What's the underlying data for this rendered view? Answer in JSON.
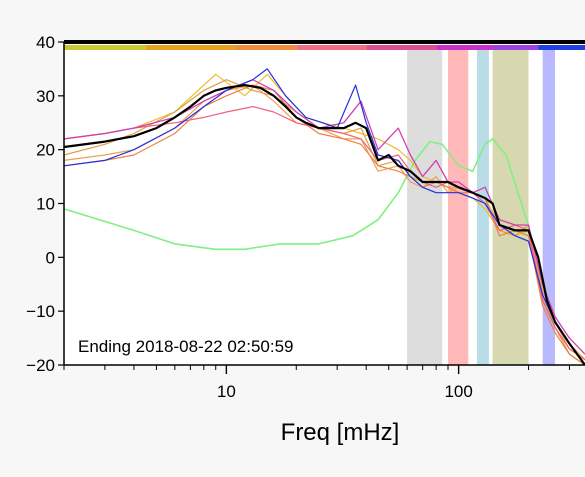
{
  "chart_data": {
    "type": "line",
    "xlabel": "Freq [mHz]",
    "ylabel": "",
    "xscale": "log",
    "xlim": [
      2,
      350
    ],
    "ylim": [
      -20,
      40
    ],
    "grid": false,
    "annotation": "Ending 2018-08-22 02:50:59",
    "x_ticks": [
      {
        "value": 10,
        "label": "10"
      },
      {
        "value": 100,
        "label": "100"
      }
    ],
    "y_ticks": [
      {
        "value": 40,
        "label": "40"
      },
      {
        "value": 30,
        "label": "30"
      },
      {
        "value": 20,
        "label": "20"
      },
      {
        "value": 10,
        "label": "10"
      },
      {
        "value": 0,
        "label": "0"
      },
      {
        "value": -10,
        "label": "−10"
      },
      {
        "value": -20,
        "label": "−20"
      }
    ],
    "top_band": [
      {
        "x0": 2,
        "x1": 4.5,
        "color": "#c8c832"
      },
      {
        "x0": 4.5,
        "x1": 11,
        "color": "#e8a020"
      },
      {
        "x0": 11,
        "x1": 20,
        "color": "#f08c3c"
      },
      {
        "x0": 20,
        "x1": 40,
        "color": "#f06e82"
      },
      {
        "x0": 40,
        "x1": 80,
        "color": "#d85090"
      },
      {
        "x0": 80,
        "x1": 140,
        "color": "#c830c8"
      },
      {
        "x0": 140,
        "x1": 220,
        "color": "#a040e0"
      },
      {
        "x0": 220,
        "x1": 350,
        "color": "#2040e0"
      }
    ],
    "shaded_bands": [
      {
        "x0": 60,
        "x1": 85,
        "color": "#b4b4b4"
      },
      {
        "x0": 90,
        "x1": 110,
        "color": "#ff6464"
      },
      {
        "x0": 120,
        "x1": 135,
        "color": "#64b4c8"
      },
      {
        "x0": 140,
        "x1": 200,
        "color": "#a8a850"
      },
      {
        "x0": 230,
        "x1": 260,
        "color": "#6464ff"
      }
    ],
    "series": [
      {
        "color": "#80f080",
        "width": 1.6,
        "points": [
          [
            2,
            9
          ],
          [
            4,
            5
          ],
          [
            6,
            2.5
          ],
          [
            9,
            1.5
          ],
          [
            12,
            1.5
          ],
          [
            17,
            2.5
          ],
          [
            25,
            2.5
          ],
          [
            35,
            4
          ],
          [
            45,
            7
          ],
          [
            55,
            12
          ],
          [
            65,
            18
          ],
          [
            75,
            21.5
          ],
          [
            85,
            21
          ],
          [
            100,
            17
          ],
          [
            115,
            16
          ],
          [
            130,
            21
          ],
          [
            140,
            22
          ],
          [
            160,
            19
          ],
          [
            180,
            12
          ],
          [
            200,
            6
          ]
        ]
      },
      {
        "color": "#e8c030",
        "width": 1.2,
        "points": [
          [
            2,
            22
          ],
          [
            3,
            23
          ],
          [
            4,
            24
          ],
          [
            6,
            27
          ],
          [
            8,
            32
          ],
          [
            9,
            34
          ],
          [
            12,
            30
          ],
          [
            15,
            34
          ],
          [
            18,
            30
          ],
          [
            22,
            26
          ],
          [
            26,
            25
          ],
          [
            32,
            24
          ],
          [
            38,
            23
          ],
          [
            45,
            22
          ],
          [
            55,
            20
          ],
          [
            62,
            18
          ],
          [
            70,
            15
          ],
          [
            80,
            14
          ],
          [
            90,
            13
          ],
          [
            100,
            12
          ],
          [
            115,
            11
          ],
          [
            130,
            9
          ],
          [
            150,
            5
          ],
          [
            175,
            4
          ],
          [
            200,
            5
          ],
          [
            230,
            -8
          ],
          [
            260,
            -12
          ],
          [
            300,
            -16
          ],
          [
            350,
            -19
          ]
        ]
      },
      {
        "color": "#e0a040",
        "width": 1.2,
        "points": [
          [
            2,
            19
          ],
          [
            3,
            21
          ],
          [
            4,
            23
          ],
          [
            6,
            27
          ],
          [
            8,
            31
          ],
          [
            10,
            33
          ],
          [
            13,
            31
          ],
          [
            16,
            30
          ],
          [
            20,
            27
          ],
          [
            25,
            24
          ],
          [
            32,
            23
          ],
          [
            38,
            24
          ],
          [
            45,
            17
          ],
          [
            55,
            18
          ],
          [
            62,
            15
          ],
          [
            70,
            14
          ],
          [
            80,
            14
          ],
          [
            90,
            13
          ],
          [
            100,
            13
          ],
          [
            115,
            12
          ],
          [
            130,
            10
          ],
          [
            150,
            5
          ],
          [
            175,
            4
          ],
          [
            200,
            6
          ],
          [
            230,
            -7
          ],
          [
            260,
            -13
          ],
          [
            300,
            -18
          ],
          [
            350,
            -20
          ]
        ]
      },
      {
        "color": "#f0a050",
        "width": 1.2,
        "points": [
          [
            2,
            18
          ],
          [
            3,
            19
          ],
          [
            4,
            20
          ],
          [
            6,
            24
          ],
          [
            8,
            29
          ],
          [
            10,
            31
          ],
          [
            13,
            32
          ],
          [
            16,
            29
          ],
          [
            20,
            25
          ],
          [
            25,
            24
          ],
          [
            32,
            22
          ],
          [
            38,
            22
          ],
          [
            45,
            16
          ],
          [
            55,
            17
          ],
          [
            62,
            14
          ],
          [
            70,
            13
          ],
          [
            80,
            15
          ],
          [
            90,
            12
          ],
          [
            100,
            13
          ],
          [
            115,
            12
          ],
          [
            130,
            11
          ],
          [
            150,
            6
          ],
          [
            175,
            5
          ],
          [
            200,
            5
          ],
          [
            230,
            -6
          ],
          [
            260,
            -12
          ],
          [
            300,
            -17
          ],
          [
            350,
            -19
          ]
        ]
      },
      {
        "color": "#f08040",
        "width": 1.2,
        "points": [
          [
            2,
            17
          ],
          [
            3,
            18
          ],
          [
            4,
            19
          ],
          [
            6,
            23
          ],
          [
            8,
            28
          ],
          [
            10,
            30
          ],
          [
            13,
            32
          ],
          [
            16,
            31
          ],
          [
            20,
            26
          ],
          [
            25,
            23
          ],
          [
            32,
            22
          ],
          [
            38,
            21
          ],
          [
            45,
            17
          ],
          [
            55,
            16
          ],
          [
            62,
            15
          ],
          [
            70,
            13
          ],
          [
            80,
            14
          ],
          [
            90,
            13
          ],
          [
            100,
            12
          ],
          [
            115,
            12
          ],
          [
            130,
            11
          ],
          [
            150,
            4
          ],
          [
            175,
            5
          ],
          [
            200,
            4
          ],
          [
            230,
            -9
          ],
          [
            260,
            -14
          ],
          [
            300,
            -18
          ],
          [
            350,
            -20
          ]
        ]
      },
      {
        "color": "#f06080",
        "width": 1.2,
        "points": [
          [
            2,
            22
          ],
          [
            3,
            23
          ],
          [
            4,
            24
          ],
          [
            6,
            25
          ],
          [
            8,
            26
          ],
          [
            10,
            27
          ],
          [
            13,
            28
          ],
          [
            16,
            27
          ],
          [
            20,
            25
          ],
          [
            25,
            24
          ],
          [
            32,
            23
          ],
          [
            38,
            22
          ],
          [
            45,
            18
          ],
          [
            55,
            19
          ],
          [
            62,
            16
          ],
          [
            70,
            14
          ],
          [
            80,
            13
          ],
          [
            90,
            14
          ],
          [
            100,
            13
          ],
          [
            115,
            12
          ],
          [
            130,
            10
          ],
          [
            150,
            5
          ],
          [
            175,
            6
          ],
          [
            200,
            5
          ],
          [
            230,
            -8
          ],
          [
            260,
            -13
          ],
          [
            300,
            -17
          ],
          [
            350,
            -19
          ]
        ]
      },
      {
        "color": "#d040b0",
        "width": 1.3,
        "points": [
          [
            2,
            22
          ],
          [
            3,
            23
          ],
          [
            4,
            24
          ],
          [
            6,
            26
          ],
          [
            8,
            29
          ],
          [
            10,
            31
          ],
          [
            13,
            33
          ],
          [
            16,
            31
          ],
          [
            20,
            27
          ],
          [
            25,
            24
          ],
          [
            32,
            25
          ],
          [
            38,
            29
          ],
          [
            45,
            20
          ],
          [
            55,
            24
          ],
          [
            62,
            19
          ],
          [
            70,
            15
          ],
          [
            80,
            18
          ],
          [
            90,
            14
          ],
          [
            100,
            14
          ],
          [
            115,
            12
          ],
          [
            130,
            13
          ],
          [
            150,
            7
          ],
          [
            175,
            6
          ],
          [
            200,
            6
          ],
          [
            230,
            -5
          ],
          [
            260,
            -11
          ],
          [
            300,
            -15
          ],
          [
            350,
            -18
          ]
        ]
      },
      {
        "color": "#2030e0",
        "width": 1.2,
        "points": [
          [
            2,
            17
          ],
          [
            3,
            18
          ],
          [
            4,
            20
          ],
          [
            6,
            24
          ],
          [
            8,
            28
          ],
          [
            10,
            31
          ],
          [
            13,
            33
          ],
          [
            15,
            35
          ],
          [
            18,
            30
          ],
          [
            22,
            26
          ],
          [
            26,
            25
          ],
          [
            30,
            24
          ],
          [
            36,
            32
          ],
          [
            40,
            25
          ],
          [
            45,
            19
          ],
          [
            55,
            18
          ],
          [
            62,
            15
          ],
          [
            70,
            13
          ],
          [
            80,
            12
          ],
          [
            90,
            12
          ],
          [
            100,
            12
          ],
          [
            115,
            11
          ],
          [
            130,
            10
          ],
          [
            150,
            6
          ],
          [
            175,
            4
          ],
          [
            200,
            3
          ],
          [
            230,
            -7
          ],
          [
            260,
            -12
          ],
          [
            300,
            -16
          ],
          [
            350,
            -20
          ]
        ]
      },
      {
        "color": "#000000",
        "width": 2.2,
        "points": [
          [
            2,
            20.5
          ],
          [
            3,
            21.5
          ],
          [
            4,
            22.5
          ],
          [
            5,
            24
          ],
          [
            6,
            26
          ],
          [
            7,
            28
          ],
          [
            8,
            30
          ],
          [
            9,
            31
          ],
          [
            10,
            31.5
          ],
          [
            12,
            32
          ],
          [
            14,
            31.5
          ],
          [
            16,
            30
          ],
          [
            18,
            28
          ],
          [
            20,
            26
          ],
          [
            22,
            25
          ],
          [
            25,
            24
          ],
          [
            28,
            24
          ],
          [
            32,
            24
          ],
          [
            36,
            25
          ],
          [
            40,
            24
          ],
          [
            45,
            18
          ],
          [
            50,
            19
          ],
          [
            55,
            17
          ],
          [
            62,
            16
          ],
          [
            70,
            14
          ],
          [
            80,
            14
          ],
          [
            90,
            14
          ],
          [
            100,
            13
          ],
          [
            115,
            12
          ],
          [
            130,
            11
          ],
          [
            140,
            10
          ],
          [
            150,
            6
          ],
          [
            175,
            5
          ],
          [
            200,
            5
          ],
          [
            220,
            0
          ],
          [
            240,
            -8
          ],
          [
            260,
            -12
          ],
          [
            300,
            -16
          ],
          [
            350,
            -20
          ]
        ]
      }
    ]
  }
}
